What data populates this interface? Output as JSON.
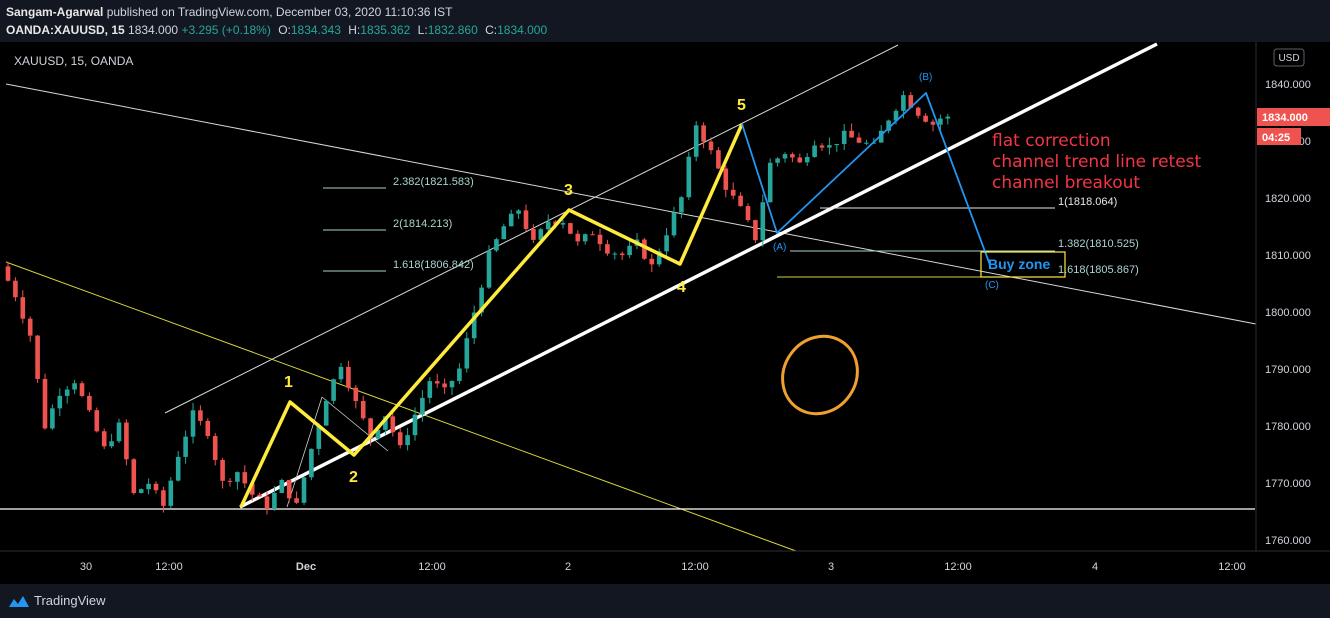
{
  "header": {
    "publisher": "Sangam-Agarwal",
    "published_text": "published on TradingView.com, December 03, 2020 11:10:36 IST",
    "symbol_full": "OANDA:XAUUSD, 15",
    "last": "1834.000",
    "change": "+3.295 (+0.18%)",
    "o_label": "O:",
    "o": "1834.343",
    "h_label": "H:",
    "h": "1835.362",
    "l_label": "L:",
    "l": "1832.860",
    "c_label": "C:",
    "c": "1834.000"
  },
  "plot_symbol": "XAUUSD, 15, OANDA",
  "footer": {
    "brand": "TradingView"
  },
  "colors": {
    "background": "#000000",
    "panel": "#131722",
    "up": "#26a69a",
    "down": "#ef5350",
    "wave": "#ffeb3b",
    "abc": "#2196f3",
    "note": "#f23645",
    "circle": "#f0a030"
  },
  "chart_data": {
    "type": "candlestick",
    "currency": "USD",
    "y_ticks": [
      "1840.000",
      "1830.000",
      "1820.000",
      "1810.000",
      "1800.000",
      "1790.000",
      "1780.000",
      "1770.000",
      "1760.000"
    ],
    "ylim": [
      1756.5,
      1848
    ],
    "x_ticks": [
      "30",
      "12:00",
      "Dec",
      "12:00",
      "2",
      "12:00",
      "3",
      "12:00",
      "4",
      "12:00"
    ],
    "last_price_label": "1834.000",
    "countdown_label": "04:25",
    "price_path": [
      [
        0,
        1808
      ],
      [
        2,
        1803
      ],
      [
        4,
        1796
      ],
      [
        6,
        1780
      ],
      [
        8,
        1786
      ],
      [
        10,
        1788
      ],
      [
        12,
        1782
      ],
      [
        14,
        1776
      ],
      [
        16,
        1780
      ],
      [
        18,
        1768
      ],
      [
        20,
        1770
      ],
      [
        22,
        1766
      ],
      [
        24,
        1775
      ],
      [
        26,
        1782
      ],
      [
        28,
        1779
      ],
      [
        30,
        1770
      ],
      [
        32,
        1772
      ],
      [
        34,
        1768
      ],
      [
        36,
        1766
      ],
      [
        38,
        1770
      ],
      [
        40,
        1766
      ],
      [
        42,
        1776
      ],
      [
        44,
        1785
      ],
      [
        46,
        1791
      ],
      [
        48,
        1784
      ],
      [
        50,
        1778
      ],
      [
        52,
        1782
      ],
      [
        54,
        1776
      ],
      [
        56,
        1782
      ],
      [
        58,
        1788
      ],
      [
        60,
        1786
      ],
      [
        62,
        1790
      ],
      [
        64,
        1800
      ],
      [
        66,
        1810
      ],
      [
        68,
        1815
      ],
      [
        70,
        1818
      ],
      [
        72,
        1812
      ],
      [
        74,
        1816
      ],
      [
        76,
        1816
      ],
      [
        78,
        1812
      ],
      [
        80,
        1814
      ],
      [
        82,
        1811
      ],
      [
        84,
        1810
      ],
      [
        86,
        1812
      ],
      [
        88,
        1808
      ],
      [
        90,
        1814
      ],
      [
        92,
        1820
      ],
      [
        94,
        1833
      ],
      [
        96,
        1828
      ],
      [
        98,
        1822
      ],
      [
        100,
        1818
      ],
      [
        102,
        1813
      ],
      [
        104,
        1826
      ],
      [
        106,
        1828
      ],
      [
        108,
        1826
      ],
      [
        110,
        1830
      ],
      [
        112,
        1829
      ],
      [
        114,
        1831
      ],
      [
        116,
        1830
      ],
      [
        118,
        1829
      ],
      [
        120,
        1834
      ],
      [
        122,
        1838
      ],
      [
        124,
        1835
      ],
      [
        126,
        1833
      ],
      [
        127,
        1834
      ]
    ],
    "wave_labels": [
      "1",
      "2",
      "3",
      "4",
      "5"
    ],
    "abc_labels": [
      "(A)",
      "(B)",
      "(C)"
    ],
    "fib_left": [
      {
        "label": "2.382(1821.583)",
        "value": 1821.583
      },
      {
        "label": "2(1814.213)",
        "value": 1814.213
      },
      {
        "label": "1.618(1806.842)",
        "value": 1806.842
      }
    ],
    "fib_right": [
      {
        "label": "1(1818.064)",
        "value": 1818.064
      },
      {
        "label": "1.382(1810.525)",
        "value": 1810.525
      },
      {
        "label": "1.618(1805.867)",
        "value": 1805.867
      }
    ],
    "buy_zone_label": "Buy zone",
    "annotations": [
      "flat correction",
      "channel trend line retest",
      "channel breakout"
    ],
    "support_level": 1765.5
  }
}
